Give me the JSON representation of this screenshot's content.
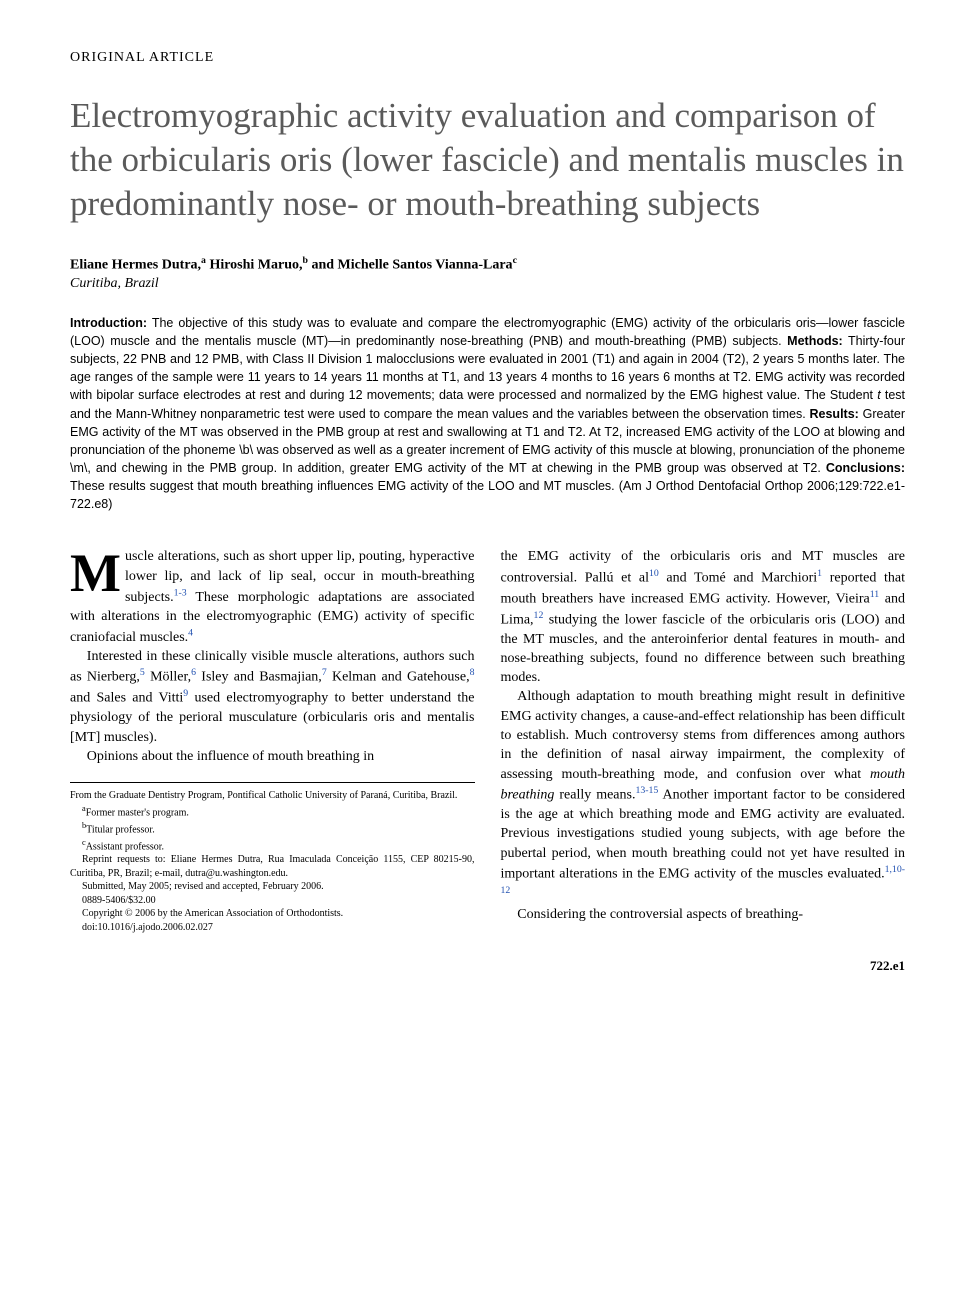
{
  "article_type": "ORIGINAL ARTICLE",
  "title": "Electromyographic activity evaluation and comparison of the orbicularis oris (lower fascicle) and mentalis muscles in predominantly nose- or mouth-breathing subjects",
  "authors_html": "Eliane Hermes Dutra,<sup class='sup-plain'>a</sup> Hiroshi Maruo,<sup class='sup-plain'>b</sup> and Michelle Santos Vianna-Lara<sup class='sup-plain'>c</sup>",
  "affiliation": "Curitiba, Brazil",
  "abstract": {
    "intro_label": "Introduction:",
    "intro": " The objective of this study was to evaluate and compare the electromyographic (EMG) activity of the orbicularis oris—lower fascicle (LOO) muscle and the mentalis muscle (MT)—in predominantly nose-breathing (PNB) and mouth-breathing (PMB) subjects. ",
    "methods_label": "Methods:",
    "methods": " Thirty-four subjects, 22 PNB and 12 PMB, with Class II Division 1 malocclusions were evaluated in 2001 (T1) and again in 2004 (T2), 2 years 5 months later. The age ranges of the sample were 11 years to 14 years 11 months at T1, and 13 years 4 months to 16 years 6 months at T2. EMG activity was recorded with bipolar surface electrodes at rest and during 12 movements; data were processed and normalized by the EMG highest value. The Student <span class='italic'>t</span> test and the Mann-Whitney nonparametric test were used to compare the mean values and the variables between the observation times. ",
    "results_label": "Results:",
    "results": " Greater EMG activity of the MT was observed in the PMB group at rest and swallowing at T1 and T2. At T2, increased EMG activity of the LOO at blowing and pronunciation of the phoneme \\b\\ was observed as well as a greater increment of EMG activity of this muscle at blowing, pronunciation of the phoneme \\m\\, and chewing in the PMB group. In addition, greater EMG activity of the MT at chewing in the PMB group was observed at T2. ",
    "conclusions_label": "Conclusions:",
    "conclusions": " These results suggest that mouth breathing influences EMG activity of the LOO and MT muscles. (Am J Orthod Dentofacial Orthop 2006;129:722.e1-722.e8)"
  },
  "body": {
    "p1_dropcap": "M",
    "p1": "uscle alterations, such as short upper lip, pouting, hyperactive lower lip, and lack of lip seal, occur in mouth-breathing subjects.<span class='sup'>1-3</span> These morphologic adaptations are associated with alterations in the electromyographic (EMG) activity of specific craniofacial muscles.<span class='sup'>4</span>",
    "p2": "Interested in these clinically visible muscle alterations, authors such as Nierberg,<span class='sup'>5</span> Möller,<span class='sup'>6</span> Isley and Basmajian,<span class='sup'>7</span> Kelman and Gatehouse,<span class='sup'>8</span> and Sales and Vitti<span class='sup'>9</span> used electromyography to better understand the physiology of the perioral musculature (orbicularis oris and mentalis [MT] muscles).",
    "p3": "Opinions about the influence of mouth breathing in",
    "p4": "the EMG activity of the orbicularis oris and MT muscles are controversial. Pallú et al<span class='sup'>10</span> and Tomé and Marchiori<span class='sup'>1</span> reported that mouth breathers have increased EMG activity. However, Vieira<span class='sup'>11</span> and Lima,<span class='sup'>12</span> studying the lower fascicle of the orbicularis oris (LOO) and the MT muscles, and the anteroinferior dental features in mouth- and nose-breathing subjects, found no difference between such breathing modes.",
    "p5": "Although adaptation to mouth breathing might result in definitive EMG activity changes, a cause-and-effect relationship has been difficult to establish. Much controversy stems from differences among authors in the definition of nasal airway impairment, the complexity of assessing mouth-breathing mode, and confusion over what <span class='italic'>mouth breathing</span> really means.<span class='sup'>13-15</span> Another important factor to be considered is the age at which breathing mode and EMG activity are evaluated. Previous investigations studied young subjects, with age before the pubertal period, when mouth breathing could not yet have resulted in important alterations in the EMG activity of the muscles evaluated.<span class='sup'>1,10-12</span>",
    "p6": "Considering the controversial aspects of breathing-"
  },
  "footnotes": {
    "l1": "From the Graduate Dentistry Program, Pontifical Catholic University of Paraná, Curitiba, Brazil.",
    "l2": "<sup>a</sup>Former master's program.",
    "l3": "<sup>b</sup>Titular professor.",
    "l4": "<sup>c</sup>Assistant professor.",
    "l5": "Reprint requests to: Eliane Hermes Dutra, Rua Imaculada Conceição 1155, CEP 80215-90, Curitiba, PR, Brazil; e-mail, dutra@u.washington.edu.",
    "l6": "Submitted, May 2005; revised and accepted, February 2006.",
    "l7": "0889-5406/$32.00",
    "l8": "Copyright © 2006 by the American Association of Orthodontists.",
    "l9": "doi:10.1016/j.ajodo.2006.02.027"
  },
  "page_number": "722.e1"
}
